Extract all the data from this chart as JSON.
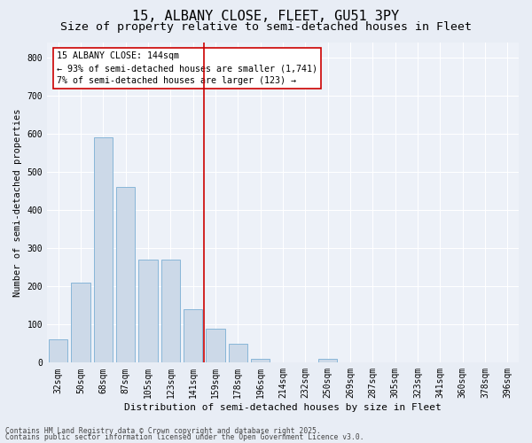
{
  "title1": "15, ALBANY CLOSE, FLEET, GU51 3PY",
  "title2": "Size of property relative to semi-detached houses in Fleet",
  "xlabel": "Distribution of semi-detached houses by size in Fleet",
  "ylabel": "Number of semi-detached properties",
  "categories": [
    "32sqm",
    "50sqm",
    "68sqm",
    "87sqm",
    "105sqm",
    "123sqm",
    "141sqm",
    "159sqm",
    "178sqm",
    "196sqm",
    "214sqm",
    "232sqm",
    "250sqm",
    "269sqm",
    "287sqm",
    "305sqm",
    "323sqm",
    "341sqm",
    "360sqm",
    "378sqm",
    "396sqm"
  ],
  "values": [
    60,
    210,
    590,
    460,
    270,
    270,
    140,
    90,
    50,
    10,
    0,
    0,
    10,
    0,
    0,
    0,
    0,
    0,
    0,
    0,
    0
  ],
  "bar_color": "#ccd9e8",
  "bar_edge_color": "#7aafd4",
  "vline_color": "#cc0000",
  "annotation_line1": "15 ALBANY CLOSE: 144sqm",
  "annotation_line2": "← 93% of semi-detached houses are smaller (1,741)",
  "annotation_line3": "7% of semi-detached houses are larger (123) →",
  "annotation_box_color": "#ffffff",
  "annotation_box_edge": "#cc0000",
  "ylim": [
    0,
    840
  ],
  "yticks": [
    0,
    100,
    200,
    300,
    400,
    500,
    600,
    700,
    800
  ],
  "footer1": "Contains HM Land Registry data © Crown copyright and database right 2025.",
  "footer2": "Contains public sector information licensed under the Open Government Licence v3.0.",
  "bg_color": "#e8edf5",
  "plot_bg_color": "#edf1f8",
  "title1_fontsize": 11,
  "title2_fontsize": 9.5,
  "tick_fontsize": 7,
  "ylabel_fontsize": 7.5,
  "xlabel_fontsize": 8,
  "footer_fontsize": 5.8
}
